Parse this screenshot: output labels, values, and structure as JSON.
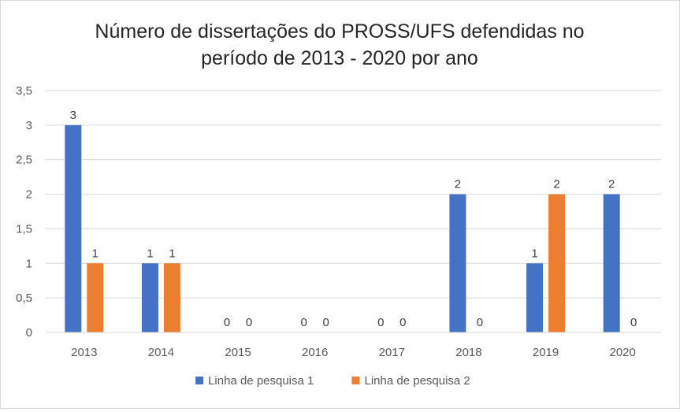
{
  "chart_data": {
    "type": "bar",
    "title_lines": [
      "Número de dissertações do PROSS/UFS defendidas no",
      "período de 2013 - 2020 por ano"
    ],
    "xlabel": "",
    "ylabel": "",
    "ylim": [
      0,
      3.5
    ],
    "y_ticks": [
      {
        "value": 0,
        "label": "0"
      },
      {
        "value": 0.5,
        "label": "0,5"
      },
      {
        "value": 1,
        "label": "1"
      },
      {
        "value": 1.5,
        "label": "1,5"
      },
      {
        "value": 2,
        "label": "2"
      },
      {
        "value": 2.5,
        "label": "2,5"
      },
      {
        "value": 3,
        "label": "3"
      },
      {
        "value": 3.5,
        "label": "3,5"
      }
    ],
    "grid": true,
    "legend_position": "bottom",
    "categories": [
      "2013",
      "2014",
      "2015",
      "2016",
      "2017",
      "2018",
      "2019",
      "2020"
    ],
    "series": [
      {
        "name": "Linha de pesquisa 1",
        "color": "#4472C4",
        "values": [
          3,
          1,
          0,
          0,
          0,
          2,
          1,
          2
        ]
      },
      {
        "name": "Linha de pesquisa 2",
        "color": "#ED7D31",
        "values": [
          1,
          1,
          0,
          0,
          0,
          0,
          2,
          0
        ]
      }
    ]
  }
}
